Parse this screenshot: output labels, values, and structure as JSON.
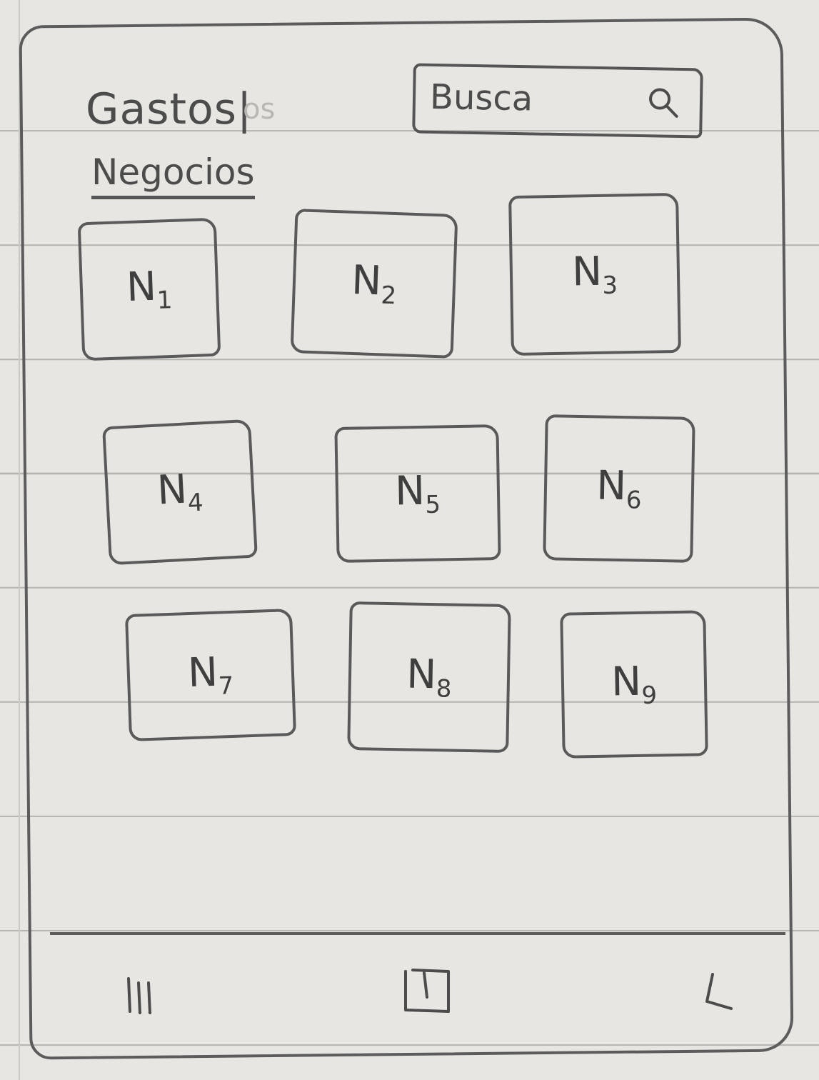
{
  "header": {
    "title": "Gastos",
    "ghost_text": "os"
  },
  "search": {
    "placeholder": "Busca",
    "icon": "search-icon"
  },
  "tabs": [
    {
      "label": "Negocios",
      "active": true
    }
  ],
  "businesses": [
    {
      "letter": "N",
      "number": "1"
    },
    {
      "letter": "N",
      "number": "2"
    },
    {
      "letter": "N",
      "number": "3"
    },
    {
      "letter": "N",
      "number": "4"
    },
    {
      "letter": "N",
      "number": "5"
    },
    {
      "letter": "N",
      "number": "6"
    },
    {
      "letter": "N",
      "number": "7"
    },
    {
      "letter": "N",
      "number": "8"
    },
    {
      "letter": "N",
      "number": "9"
    }
  ],
  "nav_bar": {
    "recents_icon": "recents-icon",
    "home_icon": "home-icon",
    "back_icon": "back-icon"
  }
}
